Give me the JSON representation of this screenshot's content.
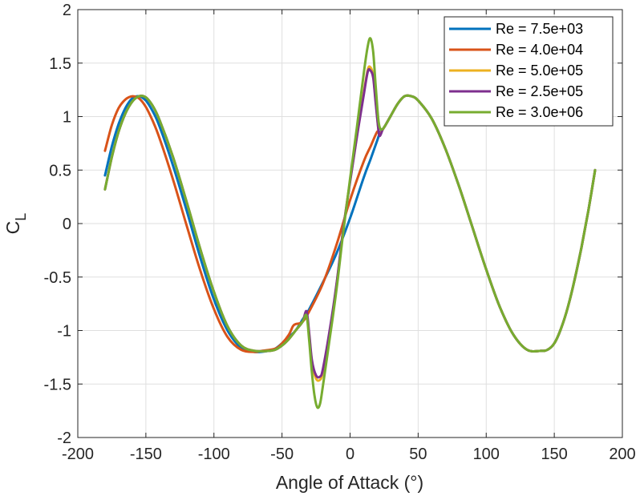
{
  "chart_data": {
    "type": "line",
    "title": "",
    "xlabel": "Angle of Attack (°)",
    "ylabel_main": "C",
    "ylabel_sub": "L",
    "xlim": [
      -200,
      200
    ],
    "ylim": [
      -2,
      2
    ],
    "xticks": [
      -200,
      -150,
      -100,
      -50,
      0,
      50,
      100,
      150,
      200
    ],
    "yticks": [
      -2,
      -1.5,
      -1,
      -0.5,
      0,
      0.5,
      1,
      1.5,
      2
    ],
    "xtick_labels": [
      "-200",
      "-150",
      "-100",
      "-50",
      "0",
      "50",
      "100",
      "150",
      "200"
    ],
    "ytick_labels": [
      "-2",
      "-1.5",
      "-1",
      "-0.5",
      "0",
      "0.5",
      "1",
      "1.5",
      "2"
    ],
    "grid": true,
    "legend_position": "top-right",
    "series": [
      {
        "name": "Re = 7.5e+03",
        "color": "#0072BD",
        "points": [
          [
            -180,
            0.45
          ],
          [
            -175,
            0.72
          ],
          [
            -170,
            0.93
          ],
          [
            -165,
            1.08
          ],
          [
            -160,
            1.17
          ],
          [
            -155,
            1.19
          ],
          [
            -150,
            1.15
          ],
          [
            -145,
            1.05
          ],
          [
            -140,
            0.91
          ],
          [
            -130,
            0.54
          ],
          [
            -120,
            0.12
          ],
          [
            -110,
            -0.32
          ],
          [
            -100,
            -0.71
          ],
          [
            -90,
            -1.0
          ],
          [
            -80,
            -1.16
          ],
          [
            -70,
            -1.2
          ],
          [
            -60,
            -1.19
          ],
          [
            -55,
            -1.17
          ],
          [
            -50,
            -1.12
          ],
          [
            -45,
            -1.06
          ],
          [
            -40,
            -1.0
          ],
          [
            -35,
            -0.9
          ],
          [
            -30,
            -0.8
          ],
          [
            -20,
            -0.55
          ],
          [
            -10,
            -0.28
          ],
          [
            0,
            0.05
          ],
          [
            10,
            0.43
          ],
          [
            15,
            0.6
          ],
          [
            20,
            0.78
          ],
          [
            22,
            0.85
          ],
          [
            24,
            0.88
          ],
          [
            26,
            0.92
          ],
          [
            30,
            1.01
          ],
          [
            35,
            1.12
          ],
          [
            40,
            1.19
          ],
          [
            45,
            1.19
          ],
          [
            50,
            1.15
          ],
          [
            60,
            0.98
          ],
          [
            70,
            0.7
          ],
          [
            80,
            0.35
          ],
          [
            90,
            -0.04
          ],
          [
            100,
            -0.43
          ],
          [
            110,
            -0.78
          ],
          [
            120,
            -1.04
          ],
          [
            130,
            -1.18
          ],
          [
            140,
            -1.19
          ],
          [
            145,
            -1.18
          ],
          [
            150,
            -1.12
          ],
          [
            155,
            -0.98
          ],
          [
            160,
            -0.78
          ],
          [
            165,
            -0.52
          ],
          [
            170,
            -0.22
          ],
          [
            175,
            0.12
          ],
          [
            180,
            0.5
          ]
        ]
      },
      {
        "name": "Re = 4.0e+04",
        "color": "#D95319",
        "points": [
          [
            -180,
            0.68
          ],
          [
            -175,
            0.92
          ],
          [
            -170,
            1.08
          ],
          [
            -165,
            1.16
          ],
          [
            -160,
            1.19
          ],
          [
            -155,
            1.17
          ],
          [
            -150,
            1.09
          ],
          [
            -145,
            0.96
          ],
          [
            -140,
            0.8
          ],
          [
            -130,
            0.41
          ],
          [
            -120,
            -0.02
          ],
          [
            -110,
            -0.44
          ],
          [
            -100,
            -0.8
          ],
          [
            -90,
            -1.06
          ],
          [
            -80,
            -1.18
          ],
          [
            -70,
            -1.2
          ],
          [
            -65,
            -1.19
          ],
          [
            -55,
            -1.17
          ],
          [
            -50,
            -1.12
          ],
          [
            -45,
            -1.04
          ],
          [
            -42,
            -0.96
          ],
          [
            -40,
            -0.94
          ],
          [
            -35,
            -0.92
          ],
          [
            -30,
            -0.82
          ],
          [
            -20,
            -0.56
          ],
          [
            -10,
            -0.2
          ],
          [
            0,
            0.22
          ],
          [
            10,
            0.58
          ],
          [
            15,
            0.72
          ],
          [
            20,
            0.86
          ],
          [
            22,
            0.84
          ],
          [
            24,
            0.88
          ],
          [
            26,
            0.92
          ],
          [
            30,
            1.01
          ],
          [
            35,
            1.12
          ],
          [
            40,
            1.19
          ],
          [
            45,
            1.19
          ],
          [
            50,
            1.15
          ],
          [
            60,
            0.98
          ],
          [
            70,
            0.7
          ],
          [
            80,
            0.35
          ],
          [
            90,
            -0.04
          ],
          [
            100,
            -0.43
          ],
          [
            110,
            -0.78
          ],
          [
            120,
            -1.04
          ],
          [
            130,
            -1.18
          ],
          [
            140,
            -1.19
          ],
          [
            145,
            -1.18
          ],
          [
            150,
            -1.12
          ],
          [
            155,
            -0.98
          ],
          [
            160,
            -0.78
          ],
          [
            165,
            -0.52
          ],
          [
            170,
            -0.22
          ],
          [
            175,
            0.12
          ],
          [
            180,
            0.5
          ]
        ]
      },
      {
        "name": "Re = 5.0e+05",
        "color": "#EDB120",
        "points": [
          [
            -180,
            0.32
          ],
          [
            -175,
            0.62
          ],
          [
            -170,
            0.86
          ],
          [
            -165,
            1.03
          ],
          [
            -160,
            1.14
          ],
          [
            -155,
            1.19
          ],
          [
            -150,
            1.18
          ],
          [
            -145,
            1.1
          ],
          [
            -140,
            0.97
          ],
          [
            -130,
            0.62
          ],
          [
            -120,
            0.2
          ],
          [
            -110,
            -0.24
          ],
          [
            -100,
            -0.64
          ],
          [
            -90,
            -0.96
          ],
          [
            -80,
            -1.14
          ],
          [
            -70,
            -1.19
          ],
          [
            -60,
            -1.19
          ],
          [
            -55,
            -1.18
          ],
          [
            -50,
            -1.14
          ],
          [
            -45,
            -1.08
          ],
          [
            -40,
            -1.0
          ],
          [
            -35,
            -0.92
          ],
          [
            -32,
            -0.84
          ],
          [
            -30,
            -1.05
          ],
          [
            -28,
            -1.3
          ],
          [
            -25,
            -1.45
          ],
          [
            -22,
            -1.46
          ],
          [
            -20,
            -1.38
          ],
          [
            -15,
            -1.02
          ],
          [
            -10,
            -0.58
          ],
          [
            -5,
            -0.05
          ],
          [
            0,
            0.4
          ],
          [
            5,
            0.82
          ],
          [
            10,
            1.22
          ],
          [
            13,
            1.44
          ],
          [
            15,
            1.46
          ],
          [
            17,
            1.38
          ],
          [
            19,
            1.12
          ],
          [
            21,
            0.86
          ],
          [
            22,
            0.84
          ],
          [
            24,
            0.88
          ],
          [
            26,
            0.92
          ],
          [
            30,
            1.01
          ],
          [
            35,
            1.12
          ],
          [
            40,
            1.19
          ],
          [
            45,
            1.19
          ],
          [
            50,
            1.15
          ],
          [
            60,
            0.98
          ],
          [
            70,
            0.7
          ],
          [
            80,
            0.35
          ],
          [
            90,
            -0.04
          ],
          [
            100,
            -0.43
          ],
          [
            110,
            -0.78
          ],
          [
            120,
            -1.04
          ],
          [
            130,
            -1.18
          ],
          [
            140,
            -1.19
          ],
          [
            145,
            -1.18
          ],
          [
            150,
            -1.12
          ],
          [
            155,
            -0.98
          ],
          [
            160,
            -0.78
          ],
          [
            165,
            -0.52
          ],
          [
            170,
            -0.22
          ],
          [
            175,
            0.12
          ],
          [
            180,
            0.5
          ]
        ]
      },
      {
        "name": "Re = 2.5e+05",
        "color": "#7E2F8E",
        "points": [
          [
            -180,
            0.32
          ],
          [
            -175,
            0.62
          ],
          [
            -170,
            0.86
          ],
          [
            -165,
            1.03
          ],
          [
            -160,
            1.14
          ],
          [
            -155,
            1.19
          ],
          [
            -150,
            1.18
          ],
          [
            -145,
            1.1
          ],
          [
            -140,
            0.97
          ],
          [
            -130,
            0.62
          ],
          [
            -120,
            0.2
          ],
          [
            -110,
            -0.24
          ],
          [
            -100,
            -0.64
          ],
          [
            -90,
            -0.96
          ],
          [
            -80,
            -1.14
          ],
          [
            -70,
            -1.19
          ],
          [
            -60,
            -1.19
          ],
          [
            -55,
            -1.18
          ],
          [
            -50,
            -1.14
          ],
          [
            -45,
            -1.08
          ],
          [
            -40,
            -1.0
          ],
          [
            -35,
            -0.92
          ],
          [
            -32,
            -0.82
          ],
          [
            -30,
            -1.03
          ],
          [
            -28,
            -1.28
          ],
          [
            -25,
            -1.42
          ],
          [
            -22,
            -1.43
          ],
          [
            -20,
            -1.36
          ],
          [
            -15,
            -1.0
          ],
          [
            -10,
            -0.57
          ],
          [
            -5,
            -0.05
          ],
          [
            0,
            0.39
          ],
          [
            5,
            0.81
          ],
          [
            10,
            1.2
          ],
          [
            13,
            1.42
          ],
          [
            15,
            1.43
          ],
          [
            17,
            1.36
          ],
          [
            19,
            1.1
          ],
          [
            21,
            0.86
          ],
          [
            22,
            0.82
          ],
          [
            24,
            0.88
          ],
          [
            26,
            0.92
          ],
          [
            30,
            1.01
          ],
          [
            35,
            1.12
          ],
          [
            40,
            1.19
          ],
          [
            45,
            1.19
          ],
          [
            50,
            1.15
          ],
          [
            60,
            0.98
          ],
          [
            70,
            0.7
          ],
          [
            80,
            0.35
          ],
          [
            90,
            -0.04
          ],
          [
            100,
            -0.43
          ],
          [
            110,
            -0.78
          ],
          [
            120,
            -1.04
          ],
          [
            130,
            -1.18
          ],
          [
            140,
            -1.19
          ],
          [
            145,
            -1.18
          ],
          [
            150,
            -1.12
          ],
          [
            155,
            -0.98
          ],
          [
            160,
            -0.78
          ],
          [
            165,
            -0.52
          ],
          [
            170,
            -0.22
          ],
          [
            175,
            0.12
          ],
          [
            180,
            0.5
          ]
        ]
      },
      {
        "name": "Re = 3.0e+06",
        "color": "#77AC30",
        "points": [
          [
            -180,
            0.32
          ],
          [
            -175,
            0.62
          ],
          [
            -170,
            0.86
          ],
          [
            -165,
            1.03
          ],
          [
            -160,
            1.14
          ],
          [
            -155,
            1.19
          ],
          [
            -150,
            1.18
          ],
          [
            -145,
            1.1
          ],
          [
            -140,
            0.97
          ],
          [
            -130,
            0.62
          ],
          [
            -120,
            0.2
          ],
          [
            -110,
            -0.24
          ],
          [
            -100,
            -0.64
          ],
          [
            -90,
            -0.96
          ],
          [
            -80,
            -1.14
          ],
          [
            -70,
            -1.19
          ],
          [
            -60,
            -1.19
          ],
          [
            -55,
            -1.18
          ],
          [
            -50,
            -1.14
          ],
          [
            -45,
            -1.08
          ],
          [
            -40,
            -1.0
          ],
          [
            -35,
            -0.92
          ],
          [
            -32,
            -0.86
          ],
          [
            -30,
            -1.1
          ],
          [
            -28,
            -1.4
          ],
          [
            -26,
            -1.62
          ],
          [
            -24,
            -1.72
          ],
          [
            -22,
            -1.68
          ],
          [
            -20,
            -1.52
          ],
          [
            -15,
            -1.08
          ],
          [
            -10,
            -0.62
          ],
          [
            -5,
            -0.08
          ],
          [
            0,
            0.42
          ],
          [
            5,
            0.9
          ],
          [
            10,
            1.4
          ],
          [
            13,
            1.66
          ],
          [
            15,
            1.73
          ],
          [
            17,
            1.6
          ],
          [
            19,
            1.25
          ],
          [
            21,
            0.95
          ],
          [
            23,
            0.88
          ],
          [
            26,
            0.92
          ],
          [
            30,
            1.01
          ],
          [
            35,
            1.12
          ],
          [
            40,
            1.19
          ],
          [
            45,
            1.19
          ],
          [
            50,
            1.15
          ],
          [
            60,
            0.98
          ],
          [
            70,
            0.7
          ],
          [
            80,
            0.35
          ],
          [
            90,
            -0.04
          ],
          [
            100,
            -0.43
          ],
          [
            110,
            -0.78
          ],
          [
            120,
            -1.04
          ],
          [
            130,
            -1.18
          ],
          [
            140,
            -1.19
          ],
          [
            145,
            -1.18
          ],
          [
            150,
            -1.12
          ],
          [
            155,
            -0.98
          ],
          [
            160,
            -0.78
          ],
          [
            165,
            -0.52
          ],
          [
            170,
            -0.22
          ],
          [
            175,
            0.12
          ],
          [
            180,
            0.5
          ]
        ]
      }
    ]
  }
}
